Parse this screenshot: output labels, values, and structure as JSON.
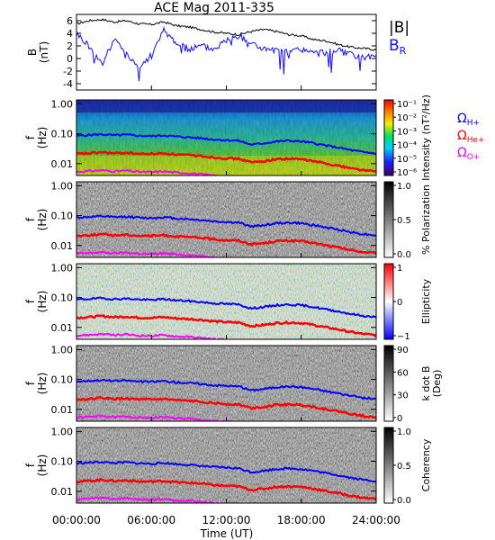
{
  "title": "ACE Mag 2011-335",
  "xaxis": {
    "label": "Time (UT)",
    "ticks": [
      "00:00:00",
      "06:00:00",
      "12:00:00",
      "18:00:00",
      "24:00:00"
    ],
    "range_hours": [
      0,
      24
    ]
  },
  "colors": {
    "b_total": "#000000",
    "b_r": "#1010ff",
    "h_plus": "#0000ff",
    "he_plus": "#ff0000",
    "o_plus": "#ff00ff"
  },
  "chart_data": [
    {
      "type": "line",
      "panel": "magnetic-field",
      "ylabel": "B\n(nT)",
      "ylim": [
        -5,
        7
      ],
      "yticks": [
        "6",
        "4",
        "2",
        "0",
        "-2",
        "-4"
      ],
      "legend": {
        "b_total": "|B|",
        "b_r_main": "B",
        "b_r_sub": "R"
      },
      "series": [
        {
          "name": "|B|",
          "x": [
            0,
            1,
            2,
            3,
            4,
            5,
            6,
            7,
            8,
            9,
            10,
            11,
            12,
            13,
            14,
            15,
            16,
            17,
            18,
            19,
            20,
            21,
            22,
            23,
            24
          ],
          "values": [
            5.5,
            6.0,
            6.2,
            5.8,
            6.0,
            5.5,
            5.4,
            5.8,
            5.2,
            5.0,
            4.6,
            4.2,
            4.0,
            3.8,
            4.3,
            4.6,
            4.3,
            3.8,
            3.6,
            3.0,
            2.8,
            2.2,
            1.8,
            1.6,
            1.4
          ]
        },
        {
          "name": "B_R",
          "x": [
            0,
            1,
            2,
            3,
            4,
            5,
            6,
            7,
            8,
            9,
            10,
            11,
            12,
            13,
            14,
            15,
            16,
            17,
            18,
            19,
            20,
            21,
            22,
            23,
            24
          ],
          "values": [
            4.0,
            2.0,
            -1.0,
            3.0,
            1.0,
            -1.5,
            0.5,
            4.5,
            2.5,
            1.5,
            2.0,
            1.5,
            3.0,
            3.5,
            2.5,
            1.5,
            1.2,
            1.0,
            1.5,
            0.8,
            1.0,
            1.2,
            0.5,
            0.0,
            0.5
          ]
        }
      ]
    },
    {
      "type": "heatmap",
      "panel": "intensity",
      "ylabel": "f\n(Hz)",
      "yticks": [
        "1.00",
        "0.10",
        "0.01"
      ],
      "colorbar": {
        "label": "Intensity (nT²/Hz)",
        "ticks": [
          "10⁻¹",
          "10⁻²",
          "10⁻³",
          "10⁻⁴",
          "10⁻⁵",
          "10⁻⁶"
        ]
      },
      "legend": [
        "Ω",
        "H+",
        "Ω",
        "He+",
        "Ω",
        "O+"
      ]
    },
    {
      "type": "heatmap",
      "panel": "polarization",
      "ylabel": "f\n(Hz)",
      "yticks": [
        "1.00",
        "0.10",
        "0.01"
      ],
      "colorbar": {
        "label": "% Polarization",
        "ticks": [
          "1.0",
          "0.5",
          "0.0"
        ]
      }
    },
    {
      "type": "heatmap",
      "panel": "ellipticity",
      "ylabel": "f\n(Hz)",
      "yticks": [
        "1.00",
        "0.10",
        "0.01"
      ],
      "colorbar": {
        "label": "Ellipticity",
        "ticks": [
          "1",
          "0",
          "−1"
        ]
      }
    },
    {
      "type": "heatmap",
      "panel": "k-dot-b",
      "ylabel": "f\n(Hz)",
      "yticks": [
        "1.00",
        "0.10",
        "0.01"
      ],
      "colorbar": {
        "label": "k dot B",
        "label2": "(Deg)",
        "ticks": [
          "90",
          "60",
          "30",
          "0"
        ]
      }
    },
    {
      "type": "heatmap",
      "panel": "coherency",
      "ylabel": "f\n(Hz)",
      "yticks": [
        "1.00",
        "0.10",
        "0.01"
      ],
      "colorbar": {
        "label": "Coherency",
        "ticks": [
          "1.0",
          "0.5",
          "0.0"
        ]
      }
    },
    {
      "type": "line",
      "panel": "gyrofrequency-overlays",
      "x": [
        0,
        1,
        2,
        3,
        4,
        5,
        6,
        7,
        8,
        9,
        10,
        11,
        12,
        13,
        14,
        15,
        16,
        17,
        18,
        19,
        20,
        21,
        22,
        23,
        24
      ],
      "series": [
        {
          "name": "ΩH+",
          "values": [
            0.085,
            0.09,
            0.095,
            0.088,
            0.092,
            0.085,
            0.083,
            0.088,
            0.08,
            0.076,
            0.07,
            0.064,
            0.061,
            0.058,
            0.043,
            0.048,
            0.055,
            0.058,
            0.055,
            0.048,
            0.04,
            0.034,
            0.028,
            0.024,
            0.022
          ]
        },
        {
          "name": "ΩHe+",
          "values": [
            0.021,
            0.022,
            0.024,
            0.022,
            0.023,
            0.021,
            0.021,
            0.022,
            0.02,
            0.019,
            0.018,
            0.016,
            0.015,
            0.0145,
            0.011,
            0.012,
            0.014,
            0.0145,
            0.014,
            0.012,
            0.01,
            0.0085,
            0.007,
            0.006,
            0.0055
          ]
        },
        {
          "name": "ΩO+",
          "values": [
            0.0053,
            0.0056,
            0.006,
            0.0055,
            0.0058,
            0.0053,
            0.0052,
            0.0055,
            0.005,
            0.0048,
            0.0044,
            0.004,
            0.0038,
            0.0036,
            0.0027,
            0.003,
            0.0034,
            0.0036,
            0.0034,
            0.003,
            0.0025,
            0.0021,
            0.0018,
            0.0015,
            0.0014
          ]
        }
      ]
    }
  ]
}
